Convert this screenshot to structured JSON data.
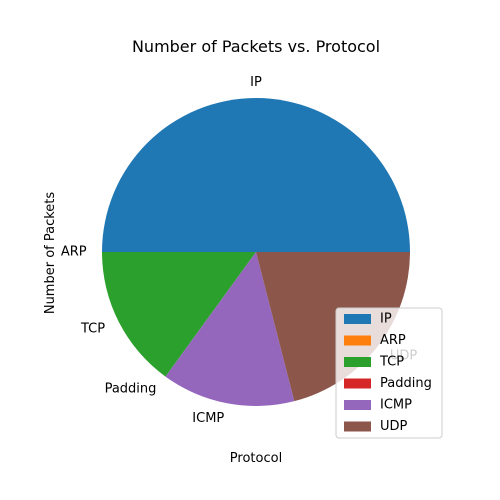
{
  "chart_data": {
    "type": "pie",
    "title": "Number of Packets vs. Protocol",
    "xlabel": "Protocol",
    "ylabel": "Number of Packets",
    "categories": [
      "IP",
      "ARP",
      "TCP",
      "Padding",
      "ICMP",
      "UDP"
    ],
    "values": [
      50,
      0,
      15,
      0,
      14,
      21
    ],
    "colors": [
      "#1f77b4",
      "#ff7f0e",
      "#2ca02c",
      "#d62728",
      "#9467bd",
      "#8c564b"
    ],
    "start_angle_deg": 0,
    "direction": "counterclockwise",
    "legend": "lower-right"
  }
}
